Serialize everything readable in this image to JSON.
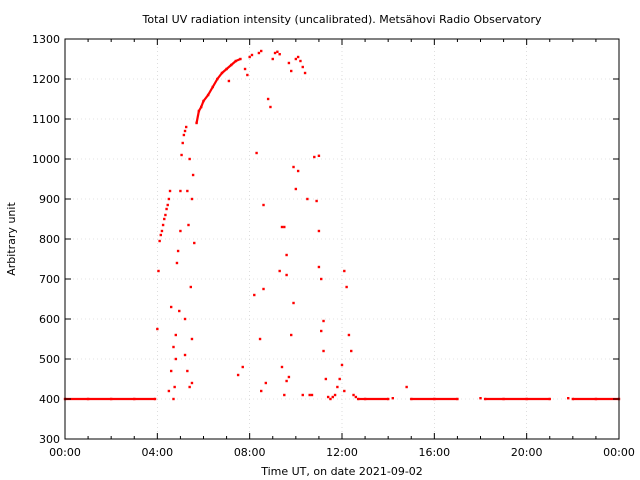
{
  "chart_data": {
    "type": "scatter",
    "title": "Total UV radiation intensity (uncalibrated). Metsähovi Radio Observatory",
    "xlabel": "Time UT, on date 2021-09-02",
    "ylabel": "Arbitrary unit",
    "x_unit": "hours UT",
    "xlim": [
      0,
      24
    ],
    "ylim": [
      300,
      1300
    ],
    "x_ticks": [
      {
        "value": 0,
        "label": "00:00"
      },
      {
        "value": 4,
        "label": "04:00"
      },
      {
        "value": 8,
        "label": "08:00"
      },
      {
        "value": 12,
        "label": "12:00"
      },
      {
        "value": 16,
        "label": "16:00"
      },
      {
        "value": 20,
        "label": "20:00"
      },
      {
        "value": 24,
        "label": "00:00"
      }
    ],
    "y_ticks": [
      300,
      400,
      500,
      600,
      700,
      800,
      900,
      1000,
      1100,
      1200,
      1300
    ],
    "grid": true,
    "marker_color": "#ff0000",
    "series": [
      {
        "points": [
          [
            0.0,
            400
          ],
          [
            1.0,
            400
          ],
          [
            2.0,
            400
          ],
          [
            3.0,
            400
          ],
          [
            3.9,
            400
          ],
          [
            4.0,
            575
          ],
          [
            4.05,
            720
          ],
          [
            4.1,
            795
          ],
          [
            4.15,
            810
          ],
          [
            4.2,
            820
          ],
          [
            4.25,
            835
          ],
          [
            4.3,
            850
          ],
          [
            4.35,
            860
          ],
          [
            4.4,
            875
          ],
          [
            4.45,
            885
          ],
          [
            4.5,
            900
          ],
          [
            4.55,
            920
          ],
          [
            4.5,
            420
          ],
          [
            4.6,
            470
          ],
          [
            4.6,
            630
          ],
          [
            4.7,
            530
          ],
          [
            4.7,
            400
          ],
          [
            4.75,
            430
          ],
          [
            4.8,
            560
          ],
          [
            4.8,
            500
          ],
          [
            4.85,
            740
          ],
          [
            4.9,
            770
          ],
          [
            4.95,
            620
          ],
          [
            5.0,
            820
          ],
          [
            5.0,
            920
          ],
          [
            5.05,
            1010
          ],
          [
            5.1,
            1040
          ],
          [
            5.15,
            1060
          ],
          [
            5.2,
            1070
          ],
          [
            5.25,
            1080
          ],
          [
            5.3,
            920
          ],
          [
            5.35,
            835
          ],
          [
            5.4,
            1000
          ],
          [
            5.2,
            600
          ],
          [
            5.2,
            510
          ],
          [
            5.3,
            470
          ],
          [
            5.4,
            430
          ],
          [
            5.45,
            680
          ],
          [
            5.5,
            900
          ],
          [
            5.55,
            960
          ],
          [
            5.6,
            790
          ],
          [
            5.5,
            440
          ],
          [
            5.5,
            550
          ],
          [
            5.7,
            1090
          ],
          [
            5.8,
            1120
          ],
          [
            5.9,
            1130
          ],
          [
            6.0,
            1145
          ],
          [
            6.2,
            1160
          ],
          [
            6.4,
            1180
          ],
          [
            6.6,
            1200
          ],
          [
            6.8,
            1215
          ],
          [
            7.0,
            1225
          ],
          [
            7.2,
            1235
          ],
          [
            7.4,
            1245
          ],
          [
            7.6,
            1250
          ],
          [
            7.1,
            1195
          ],
          [
            7.5,
            460
          ],
          [
            7.7,
            480
          ],
          [
            7.8,
            1225
          ],
          [
            7.9,
            1210
          ],
          [
            8.0,
            1255
          ],
          [
            8.1,
            1260
          ],
          [
            8.2,
            660
          ],
          [
            8.3,
            1015
          ],
          [
            8.4,
            1265
          ],
          [
            8.5,
            1270
          ],
          [
            8.6,
            885
          ],
          [
            8.45,
            550
          ],
          [
            8.5,
            420
          ],
          [
            8.6,
            675
          ],
          [
            8.7,
            440
          ],
          [
            8.8,
            1150
          ],
          [
            8.9,
            1130
          ],
          [
            9.0,
            1250
          ],
          [
            9.1,
            1265
          ],
          [
            9.2,
            1268
          ],
          [
            9.3,
            1262
          ],
          [
            9.3,
            720
          ],
          [
            9.4,
            830
          ],
          [
            9.5,
            830
          ],
          [
            9.6,
            760
          ],
          [
            9.6,
            710
          ],
          [
            9.7,
            1240
          ],
          [
            9.8,
            1220
          ],
          [
            9.9,
            980
          ],
          [
            10.0,
            925
          ],
          [
            10.1,
            970
          ],
          [
            9.4,
            480
          ],
          [
            9.5,
            410
          ],
          [
            9.6,
            445
          ],
          [
            9.7,
            455
          ],
          [
            9.8,
            560
          ],
          [
            9.9,
            640
          ],
          [
            10.0,
            1250
          ],
          [
            10.1,
            1255
          ],
          [
            10.2,
            1245
          ],
          [
            10.3,
            1230
          ],
          [
            10.4,
            1215
          ],
          [
            10.3,
            410
          ],
          [
            10.5,
            900
          ],
          [
            10.6,
            410
          ],
          [
            10.7,
            410
          ],
          [
            10.8,
            1005
          ],
          [
            10.9,
            895
          ],
          [
            11.0,
            1008
          ],
          [
            11.0,
            820
          ],
          [
            11.0,
            730
          ],
          [
            11.1,
            700
          ],
          [
            11.2,
            595
          ],
          [
            11.1,
            570
          ],
          [
            11.2,
            520
          ],
          [
            11.3,
            450
          ],
          [
            11.4,
            405
          ],
          [
            11.5,
            400
          ],
          [
            11.6,
            405
          ],
          [
            11.7,
            410
          ],
          [
            11.8,
            430
          ],
          [
            11.9,
            450
          ],
          [
            12.0,
            485
          ],
          [
            12.1,
            420
          ],
          [
            12.1,
            720
          ],
          [
            12.2,
            680
          ],
          [
            12.3,
            560
          ],
          [
            12.4,
            520
          ],
          [
            12.5,
            410
          ],
          [
            12.6,
            405
          ],
          [
            12.7,
            400
          ],
          [
            13.0,
            400
          ],
          [
            14.0,
            400
          ],
          [
            14.2,
            402
          ],
          [
            14.8,
            430
          ],
          [
            15.0,
            400
          ],
          [
            16.0,
            400
          ],
          [
            17.0,
            400
          ],
          [
            18.0,
            402
          ],
          [
            18.2,
            400
          ],
          [
            19.0,
            400
          ],
          [
            20.0,
            400
          ],
          [
            21.0,
            400
          ],
          [
            21.8,
            402
          ],
          [
            22.0,
            400
          ],
          [
            23.0,
            400
          ],
          [
            24.0,
            400
          ]
        ]
      }
    ]
  }
}
